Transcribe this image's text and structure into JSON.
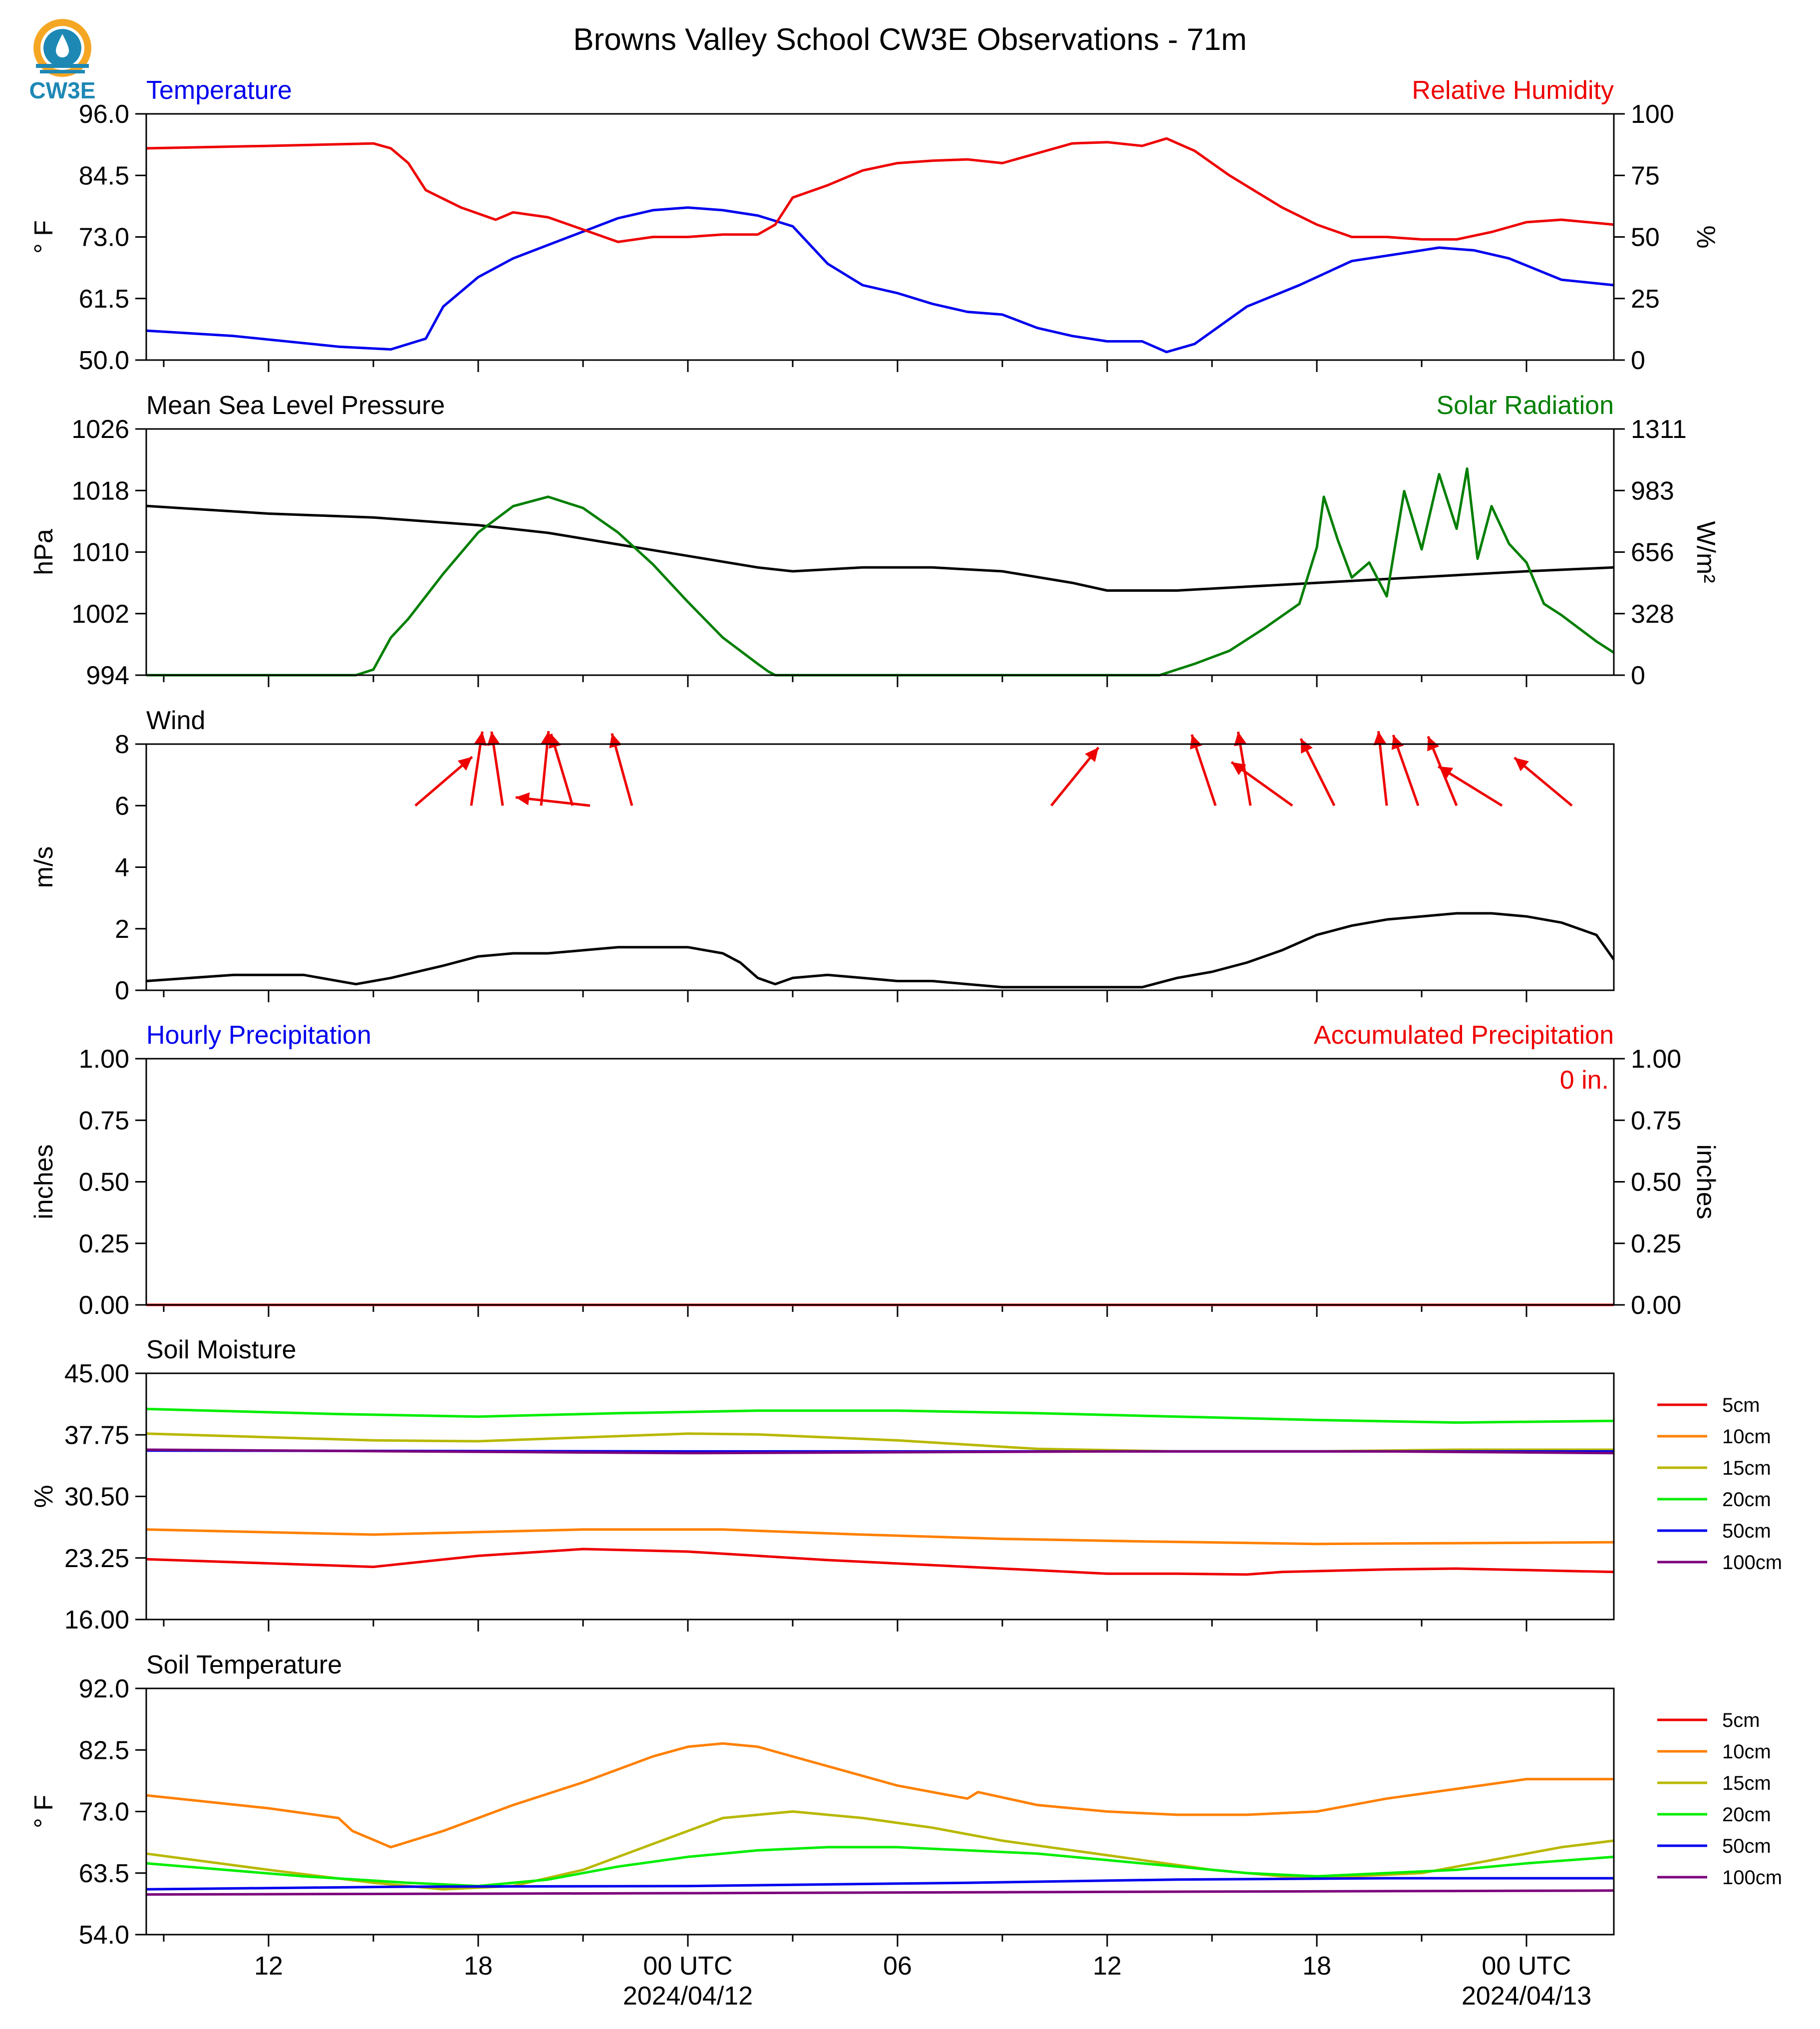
{
  "title": "Browns Valley School CW3E Observations - 71m",
  "logo_text": "CW3E",
  "colors": {
    "blue": "#0000ee",
    "red": "#ee0000",
    "green": "#007f00",
    "black": "#000000",
    "logo_orange": "#f5a623",
    "logo_blue": "#1e88b5"
  },
  "x_axis": {
    "range_hours": [
      -15.5,
      26.5
    ],
    "tick_labels": [
      {
        "h": -12,
        "lines": [
          "12"
        ]
      },
      {
        "h": -6,
        "lines": [
          "18"
        ]
      },
      {
        "h": 0,
        "lines": [
          "00 UTC",
          "2024/04/12"
        ]
      },
      {
        "h": 6,
        "lines": [
          "06"
        ]
      },
      {
        "h": 12,
        "lines": [
          "12"
        ]
      },
      {
        "h": 18,
        "lines": [
          "18"
        ]
      },
      {
        "h": 24,
        "lines": [
          "00 UTC",
          "2024/04/13"
        ]
      }
    ]
  },
  "panels": [
    {
      "key": "temp_rh",
      "title_left": "Temperature",
      "title_left_color": "#0000ee",
      "title_right": "Relative Humidity",
      "title_right_color": "#ee0000",
      "ylabel_left": "° F",
      "ylabel_right": "%",
      "left_ticks": [
        "50.0",
        "61.5",
        "73.0",
        "84.5",
        "96.0"
      ],
      "left_range": [
        50,
        96
      ],
      "right_ticks": [
        "0",
        "25",
        "50",
        "75",
        "100"
      ],
      "right_range": [
        0,
        100
      ]
    },
    {
      "key": "pres_solar",
      "title_left": "Mean Sea Level Pressure",
      "title_left_color": "#000000",
      "title_right": "Solar Radiation",
      "title_right_color": "#007f00",
      "ylabel_left": "hPa",
      "ylabel_right": "W/m²",
      "left_ticks": [
        "994",
        "1002",
        "1010",
        "1018",
        "1026"
      ],
      "left_range": [
        994,
        1026
      ],
      "right_ticks": [
        "0",
        "328",
        "656",
        "983",
        "1311"
      ],
      "right_range": [
        0,
        1311
      ]
    },
    {
      "key": "wind",
      "title_left": "Wind",
      "title_left_color": "#000000",
      "ylabel_left": "m/s",
      "left_ticks": [
        "0",
        "2",
        "4",
        "6",
        "8"
      ],
      "left_range": [
        0,
        8
      ]
    },
    {
      "key": "precip",
      "title_left": "Hourly Precipitation",
      "title_left_color": "#0000ee",
      "title_right": "Accumulated Precipitation",
      "title_right_color": "#ee0000",
      "ylabel_left": "inches",
      "ylabel_right": "inches",
      "left_ticks": [
        "0.00",
        "0.25",
        "0.50",
        "0.75",
        "1.00"
      ],
      "left_range": [
        0,
        1
      ],
      "right_ticks": [
        "0.00",
        "0.25",
        "0.50",
        "0.75",
        "1.00"
      ],
      "right_range": [
        0,
        1
      ],
      "annotation": "0 in."
    },
    {
      "key": "soil_moist",
      "title_left": "Soil Moisture",
      "title_left_color": "#000000",
      "ylabel_left": "%",
      "left_ticks": [
        "16.00",
        "23.25",
        "30.50",
        "37.75",
        "45.00"
      ],
      "left_range": [
        16,
        45
      ]
    },
    {
      "key": "soil_temp",
      "title_left": "Soil Temperature",
      "title_left_color": "#000000",
      "ylabel_left": "° F",
      "left_ticks": [
        "54.0",
        "63.5",
        "73.0",
        "82.5",
        "92.0"
      ],
      "left_range": [
        54,
        92
      ]
    }
  ],
  "chart_data": [
    {
      "type": "line",
      "title": "Temperature / Relative Humidity",
      "x_units": "hours from 2024/04/12 00 UTC",
      "series": [
        {
          "name": "Temperature",
          "axis": "left",
          "color": "#0000ee",
          "x": [
            -15.5,
            -13,
            -10,
            -8.5,
            -7.5,
            -7,
            -6,
            -5,
            -4,
            -3,
            -2,
            -1,
            0,
            1,
            2,
            3,
            4,
            5,
            6,
            7,
            8,
            9,
            10,
            11,
            12,
            13,
            13.7,
            14.5,
            16,
            17.5,
            19,
            20.5,
            21.5,
            22.5,
            23.5,
            25,
            26.5
          ],
          "y": [
            55.5,
            54.5,
            52.5,
            52,
            54,
            60,
            65.5,
            69,
            71.5,
            74,
            76.5,
            78,
            78.5,
            78,
            77,
            75,
            68,
            64,
            62.5,
            60.5,
            59,
            58.5,
            56,
            54.5,
            53.5,
            53.5,
            51.5,
            53,
            60,
            64,
            68.5,
            70,
            71,
            70.5,
            69,
            65,
            64
          ]
        },
        {
          "name": "Relative Humidity",
          "axis": "right",
          "color": "#ee0000",
          "x": [
            -15.5,
            -12,
            -9,
            -8.5,
            -8,
            -7.5,
            -6.5,
            -5.5,
            -5,
            -4,
            -3,
            -2,
            -1,
            0,
            1,
            2,
            2.5,
            3,
            4,
            5,
            6,
            7,
            8,
            9,
            10,
            11,
            12,
            13,
            13.7,
            14.5,
            15.5,
            17,
            18,
            19,
            20,
            21,
            22,
            23,
            24,
            25,
            26.5
          ],
          "y": [
            86,
            87,
            88,
            86,
            80,
            69,
            62,
            57,
            60,
            58,
            53,
            48,
            50,
            50,
            51,
            51,
            55,
            66,
            71,
            77,
            80,
            81,
            81.5,
            80,
            84,
            88,
            88.5,
            87,
            90,
            85,
            75,
            62,
            55,
            50,
            50,
            49,
            49,
            52,
            56,
            57,
            55
          ]
        }
      ]
    },
    {
      "type": "line",
      "title": "Mean Sea Level Pressure / Solar Radiation",
      "series": [
        {
          "name": "Mean Sea Level Pressure",
          "axis": "left",
          "color": "#000000",
          "x": [
            -15.5,
            -12,
            -9,
            -6,
            -4,
            -2,
            0,
            2,
            3,
            5,
            7,
            9,
            11,
            12,
            14,
            16,
            18,
            20,
            22,
            24,
            26.5
          ],
          "y": [
            1016,
            1015,
            1014.5,
            1013.5,
            1012.5,
            1011,
            1009.5,
            1008,
            1007.5,
            1008,
            1008,
            1007.5,
            1006,
            1005,
            1005,
            1005.5,
            1006,
            1006.5,
            1007,
            1007.5,
            1008
          ]
        },
        {
          "name": "Solar Radiation",
          "axis": "right",
          "color": "#007f00",
          "x": [
            -15.5,
            -9.5,
            -9,
            -8.5,
            -8,
            -7,
            -6,
            -5,
            -4,
            -3,
            -2,
            -1,
            0,
            1,
            2,
            2.3,
            2.5,
            7,
            12,
            13.5,
            14.5,
            15.5,
            16.5,
            17.5,
            18,
            18.2,
            18.6,
            19,
            19.5,
            20,
            20.5,
            21,
            21.5,
            22,
            22.3,
            22.6,
            23,
            23.5,
            24,
            24.5,
            25,
            26,
            26.5
          ],
          "y": [
            0,
            0,
            30,
            200,
            300,
            540,
            760,
            900,
            950,
            890,
            760,
            590,
            390,
            200,
            60,
            20,
            0,
            0,
            0,
            0,
            60,
            130,
            250,
            380,
            680,
            950,
            720,
            520,
            600,
            420,
            980,
            670,
            1070,
            780,
            1100,
            620,
            900,
            700,
            600,
            380,
            320,
            180,
            120
          ]
        }
      ]
    },
    {
      "type": "line",
      "title": "Wind",
      "series": [
        {
          "name": "Wind",
          "color": "#000000",
          "x": [
            -15.5,
            -13,
            -11,
            -9.5,
            -8.5,
            -7,
            -6,
            -5,
            -4,
            -3,
            -2,
            -1,
            0,
            1,
            1.5,
            2,
            2.5,
            3,
            4,
            5,
            6,
            7,
            8,
            9,
            10,
            11,
            12,
            13,
            14,
            15,
            16,
            17,
            18,
            19,
            20,
            21,
            22,
            23,
            24,
            25,
            26,
            26.5
          ],
          "y": [
            0.3,
            0.5,
            0.5,
            0.2,
            0.4,
            0.8,
            1.1,
            1.2,
            1.2,
            1.3,
            1.4,
            1.4,
            1.4,
            1.2,
            0.9,
            0.4,
            0.2,
            0.4,
            0.5,
            0.4,
            0.3,
            0.3,
            0.2,
            0.1,
            0.1,
            0.1,
            0.1,
            0.1,
            0.4,
            0.6,
            0.9,
            1.3,
            1.8,
            2.1,
            2.3,
            2.4,
            2.5,
            2.5,
            2.4,
            2.2,
            1.8,
            1.0
          ]
        }
      ],
      "arrows": [
        {
          "h": -7.8,
          "dx": 1.4,
          "dy": 1.2
        },
        {
          "h": -6.2,
          "dx": 0.3,
          "dy": 2
        },
        {
          "h": -5.3,
          "dx": -0.3,
          "dy": 2
        },
        {
          "h": -4.2,
          "dx": 0.2,
          "dy": 2
        },
        {
          "h": -3.3,
          "dx": -0.6,
          "dy": 2
        },
        {
          "h": -2.8,
          "dx": -1.8,
          "dy": 0.2
        },
        {
          "h": -1.6,
          "dx": -0.5,
          "dy": 1.8
        },
        {
          "h": 10.4,
          "dx": 1.3,
          "dy": 1.6
        },
        {
          "h": 15.1,
          "dx": -0.6,
          "dy": 1.8
        },
        {
          "h": 16.1,
          "dx": -0.3,
          "dy": 1.8
        },
        {
          "h": 17.3,
          "dx": -1.4,
          "dy": 1.0
        },
        {
          "h": 18.5,
          "dx": -0.8,
          "dy": 1.6
        },
        {
          "h": 20,
          "dx": -0.2,
          "dy": 1.8
        },
        {
          "h": 20.9,
          "dx": -0.6,
          "dy": 1.7
        },
        {
          "h": 22,
          "dx": -0.7,
          "dy": 1.7
        },
        {
          "h": 23.3,
          "dx": -1.3,
          "dy": 0.8
        },
        {
          "h": 25.3,
          "dx": -1.2,
          "dy": 1.0
        }
      ]
    },
    {
      "type": "line",
      "title": "Hourly Precipitation / Accumulated Precipitation",
      "series": [
        {
          "name": "Hourly Precipitation",
          "axis": "left",
          "color": "#0000ee",
          "x": [
            -15.5,
            26.5
          ],
          "y": [
            0,
            0
          ]
        },
        {
          "name": "Accumulated Precipitation",
          "axis": "right",
          "color": "#ee0000",
          "x": [
            -15.5,
            26.5
          ],
          "y": [
            0,
            0
          ]
        }
      ]
    },
    {
      "type": "line",
      "title": "Soil Moisture",
      "series": [
        {
          "name": "5cm",
          "color": "#ee0000",
          "x": [
            -15.5,
            -9,
            -6,
            -3,
            0,
            4,
            8,
            12,
            14,
            16,
            17,
            20,
            22,
            26.5
          ],
          "y": [
            23.1,
            22.2,
            23.5,
            24.3,
            24.0,
            23.0,
            22.2,
            21.4,
            21.4,
            21.3,
            21.6,
            21.9,
            22.0,
            21.6
          ]
        },
        {
          "name": "10cm",
          "color": "#ff8000",
          "x": [
            -15.5,
            -9,
            -3,
            1,
            5,
            9,
            13,
            18,
            26.5
          ],
          "y": [
            26.6,
            26.0,
            26.6,
            26.6,
            26.0,
            25.5,
            25.2,
            24.9,
            25.1
          ]
        },
        {
          "name": "15cm",
          "color": "#b8b800",
          "x": [
            -15.5,
            -9,
            -6,
            0,
            2,
            6,
            10,
            14,
            18,
            22,
            26.5
          ],
          "y": [
            37.9,
            37.1,
            37.0,
            37.9,
            37.8,
            37.1,
            36.1,
            35.8,
            35.8,
            36.0,
            36.0
          ]
        },
        {
          "name": "20cm",
          "color": "#00ee00",
          "x": [
            -15.5,
            -10,
            -6,
            -2,
            2,
            6,
            10,
            14,
            18,
            22,
            26.5
          ],
          "y": [
            40.8,
            40.2,
            39.9,
            40.3,
            40.6,
            40.6,
            40.3,
            39.9,
            39.5,
            39.2,
            39.4
          ]
        },
        {
          "name": "50cm",
          "color": "#0000ee",
          "x": [
            -15.5,
            0,
            12,
            26.5
          ],
          "y": [
            35.9,
            35.8,
            35.8,
            35.8
          ]
        },
        {
          "name": "100cm",
          "color": "#7b007b",
          "x": [
            -15.5,
            0,
            12,
            20,
            26.5
          ],
          "y": [
            36.0,
            35.6,
            35.8,
            35.8,
            35.6
          ]
        }
      ]
    },
    {
      "type": "line",
      "title": "Soil Temperature",
      "series": [
        {
          "name": "5cm",
          "color": "#ee0000",
          "x": [],
          "y": []
        },
        {
          "name": "10cm",
          "color": "#ff8000",
          "x": [
            -15.5,
            -12,
            -10,
            -9.6,
            -8.5,
            -7,
            -5,
            -3,
            -1,
            0,
            1,
            2,
            4,
            6,
            8,
            8.3,
            10,
            12,
            14,
            16,
            18,
            20,
            22,
            24,
            26.5
          ],
          "y": [
            75.5,
            73.5,
            72,
            70,
            67.5,
            70,
            74,
            77.5,
            81.5,
            83,
            83.5,
            83,
            80,
            77,
            75,
            76,
            74,
            73,
            72.5,
            72.5,
            73,
            75,
            76.5,
            78,
            78
          ]
        },
        {
          "name": "15cm",
          "color": "#b8b800",
          "x": [
            -15.5,
            -12,
            -9,
            -7,
            -5,
            -3,
            -1,
            1,
            3,
            5,
            7,
            9,
            11,
            13,
            15,
            17,
            19,
            21,
            23,
            25,
            26.5
          ],
          "y": [
            66.5,
            64,
            62,
            61,
            61.5,
            64,
            68,
            72,
            73,
            72,
            70.5,
            68.5,
            67,
            65.5,
            64,
            63,
            63,
            63.5,
            65.5,
            67.5,
            68.5
          ]
        },
        {
          "name": "20cm",
          "color": "#00ee00",
          "x": [
            -15.5,
            -11,
            -8,
            -6,
            -4,
            -2,
            0,
            2,
            4,
            6,
            8,
            10,
            12,
            14,
            16,
            18,
            20,
            22,
            24,
            26.5
          ],
          "y": [
            65,
            63,
            62,
            61.5,
            62.5,
            64.5,
            66,
            67,
            67.5,
            67.5,
            67,
            66.5,
            65.5,
            64.5,
            63.5,
            63,
            63.5,
            64,
            65,
            66
          ]
        },
        {
          "name": "50cm",
          "color": "#0000ee",
          "x": [
            -15.5,
            -8,
            0,
            8,
            14,
            20,
            26.5
          ],
          "y": [
            61,
            61.4,
            61.5,
            62,
            62.5,
            62.7,
            62.7
          ]
        },
        {
          "name": "100cm",
          "color": "#7b007b",
          "x": [
            -15.5,
            0,
            12,
            26.5
          ],
          "y": [
            60.2,
            60.4,
            60.6,
            60.8
          ]
        }
      ]
    }
  ]
}
